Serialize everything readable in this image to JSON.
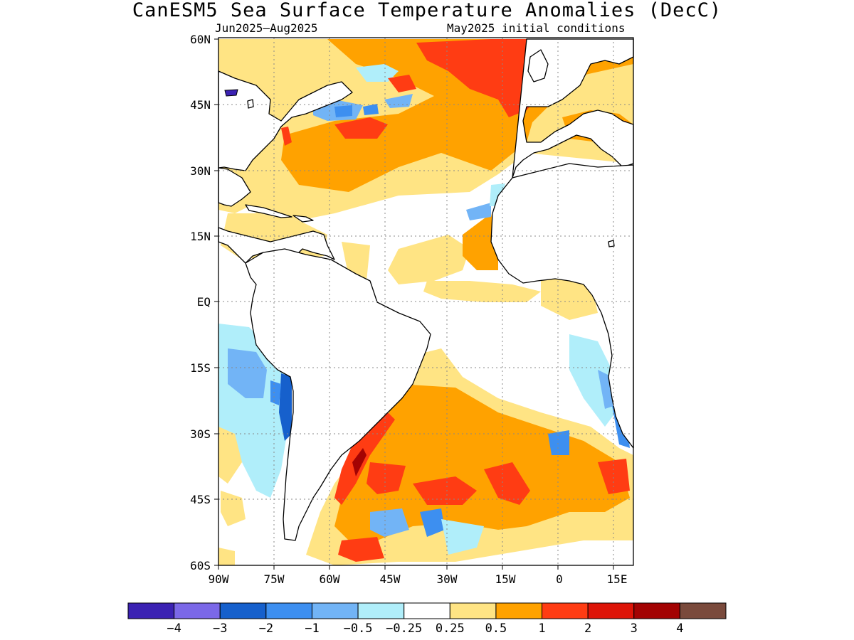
{
  "title": "CanESM5 Sea Surface Temperature Anomalies (DecC)",
  "subtitle_left": "Jun2025–Aug2025",
  "subtitle_right": "May2025 initial conditions",
  "lat_labels": [
    "60N",
    "45N",
    "30N",
    "15N",
    "EQ",
    "15S",
    "30S",
    "45S",
    "60S"
  ],
  "lon_labels": [
    "90W",
    "75W",
    "60W",
    "45W",
    "30W",
    "15W",
    "0",
    "15E"
  ],
  "colorbar": {
    "colors": [
      "#3b22b3",
      "#7b68e8",
      "#1660cc",
      "#3d8ff0",
      "#72b4f6",
      "#b0eefa",
      "#ffffff",
      "#ffe484",
      "#ffa200",
      "#ff3c13",
      "#dd1408",
      "#a30303",
      "#7a4a3c"
    ],
    "labels": [
      "−4",
      "−3",
      "−2",
      "−1",
      "−0.5",
      "−0.25",
      "0.25",
      "0.5",
      "1",
      "2",
      "3",
      "4"
    ]
  }
}
